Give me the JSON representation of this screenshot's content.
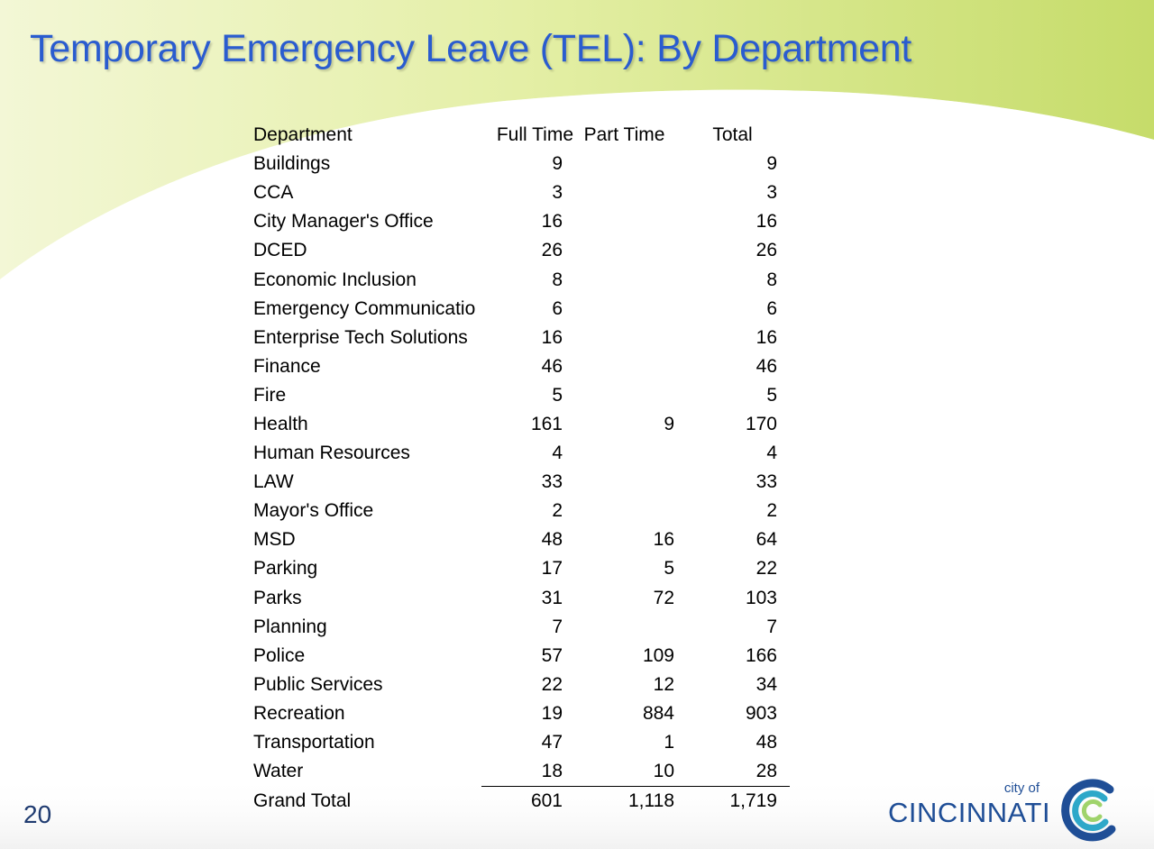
{
  "slide": {
    "title": "Temporary Emergency Leave (TEL): By Department",
    "number": "20"
  },
  "table": {
    "headers": [
      "Department",
      "Full Time",
      "Part Time",
      "Total"
    ],
    "rows": [
      [
        "Buildings",
        "9",
        "",
        "9"
      ],
      [
        "CCA",
        "3",
        "",
        "3"
      ],
      [
        "City Manager's Office",
        "16",
        "",
        "16"
      ],
      [
        "DCED",
        "26",
        "",
        "26"
      ],
      [
        "Economic Inclusion",
        "8",
        "",
        "8"
      ],
      [
        "Emergency Communicatio",
        "6",
        "",
        "6"
      ],
      [
        "Enterprise Tech Solutions",
        "16",
        "",
        "16"
      ],
      [
        "Finance",
        "46",
        "",
        "46"
      ],
      [
        "Fire",
        "5",
        "",
        "5"
      ],
      [
        "Health",
        "161",
        "9",
        "170"
      ],
      [
        "Human Resources",
        "4",
        "",
        "4"
      ],
      [
        "LAW",
        "33",
        "",
        "33"
      ],
      [
        "Mayor's Office",
        "2",
        "",
        "2"
      ],
      [
        "MSD",
        "48",
        "16",
        "64"
      ],
      [
        "Parking",
        "17",
        "5",
        "22"
      ],
      [
        "Parks",
        "31",
        "72",
        "103"
      ],
      [
        "Planning",
        "7",
        "",
        "7"
      ],
      [
        "Police",
        "57",
        "109",
        "166"
      ],
      [
        "Public Services",
        "22",
        "12",
        "34"
      ],
      [
        "Recreation",
        "19",
        "884",
        "903"
      ],
      [
        "Transportation",
        "47",
        "1",
        "48"
      ],
      [
        "Water",
        "18",
        "10",
        "28"
      ]
    ],
    "total_row": [
      "Grand Total",
      "601",
      "1,118",
      "1,719"
    ]
  },
  "logo": {
    "city_of": "city of",
    "name": "CINCINNATI"
  },
  "colors": {
    "title": "#2a5ccf",
    "green_light": "#eef4c2",
    "green_mid": "#d6e68a",
    "green_dark": "#c2d962",
    "logo_blue": "#1f4e96",
    "logo_teal": "#2ea8c9"
  }
}
